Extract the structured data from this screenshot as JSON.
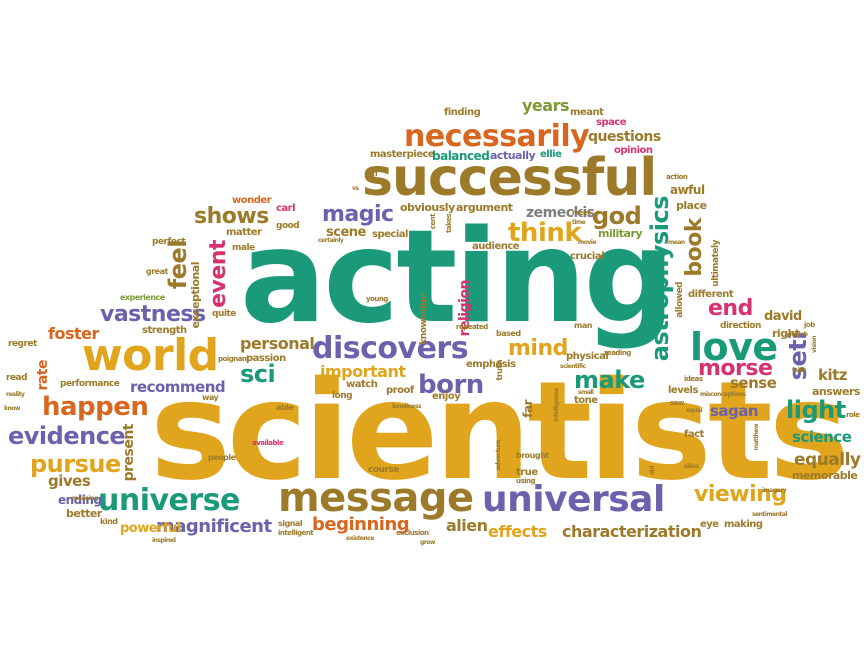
{
  "palette": {
    "green": "#1a9a78",
    "gold": "#e0a51c",
    "orange": "#d9661e",
    "brown": "#9c7a2a",
    "purple": "#6b62ad",
    "pink": "#d6336e",
    "olive": "#7a9a34",
    "teal": "#2a8f8f",
    "gray": "#7d7d7d"
  },
  "words": {
    "acting": "acting",
    "scientists": "scientists",
    "successful": "successful",
    "necessarily": "necessarily",
    "world": "world",
    "message": "message",
    "universe": "universe",
    "universal": "universal",
    "discovers": "discovers",
    "love": "love",
    "think": "think",
    "astrophysics": "astrophysics",
    "evidence": "evidence",
    "happen": "happen",
    "pursue": "pursue",
    "vastness": "vastness",
    "magic": "magic",
    "shows": "shows",
    "god": "god",
    "feel": "feel",
    "event": "event",
    "book": "book",
    "born": "born",
    "make": "make",
    "morse": "morse",
    "mind": "mind",
    "seti": "seti",
    "light": "light",
    "sci": "sci",
    "viewing": "viewing",
    "end": "end",
    "questions": "questions",
    "years": "years",
    "zemeckis": "zemeckis",
    "magnificent": "magnificent",
    "beginning": "beginning",
    "characterization": "characterization",
    "effects": "effects",
    "alien": "alien",
    "science": "science",
    "equally": "equally",
    "kitz": "kitz",
    "sagan": "sagan",
    "sense": "sense",
    "important": "important",
    "personal": "personal",
    "recommend": "recommend",
    "foster": "foster",
    "rate": "rate",
    "gives": "gives",
    "present": "present",
    "powerful": "powerful",
    "ending": "ending",
    "better": "better",
    "david": "david",
    "right": "right",
    "answers": "answers",
    "memorable": "memorable",
    "religion": "religion",
    "masterpiece": "masterpiece",
    "balanced": "balanced",
    "actually": "actually",
    "ellie": "ellie",
    "finding": "finding",
    "meant": "meant",
    "space": "space",
    "opinion": "opinion",
    "obviously": "obviously",
    "argument": "argument",
    "scene": "scene",
    "special": "special",
    "military": "military",
    "crucial": "crucial",
    "audience": "audience",
    "carl": "carl",
    "wonder": "wonder",
    "good": "good",
    "matter": "matter",
    "perfect": "perfect",
    "exceptional": "exceptional",
    "male": "male",
    "great": "great",
    "experience": "experience",
    "quite": "quite",
    "strength": "strength",
    "regret": "regret",
    "passion": "passion",
    "poignant": "poignant",
    "performance": "performance",
    "way": "way",
    "read": "read",
    "watch": "watch",
    "proof": "proof",
    "enjoy": "enjoy",
    "emphasis": "emphasis",
    "physical": "physical",
    "tone": "tone",
    "fact": "fact",
    "levels": "levels",
    "direction": "direction",
    "job": "job",
    "vision": "vision",
    "role": "role",
    "allowed": "allowed",
    "different": "different",
    "ultimately": "ultimately",
    "action": "action",
    "awful": "awful",
    "place": "place",
    "man": "man",
    "based": "based",
    "repeated": "repeated",
    "truth": "truth",
    "far": "far",
    "true": "true",
    "using": "using",
    "brought": "brought",
    "course": "course",
    "able": "able",
    "long": "long",
    "people": "people",
    "available": "available",
    "signal": "signal",
    "intelligent": "intelligent",
    "exclusion": "exclusion",
    "existence": "existence",
    "grow": "grow",
    "eye": "eye",
    "making": "making",
    "sentimental": "sentimental",
    "kind": "kind",
    "inspired": "inspired",
    "knowledge": "knowledge",
    "young": "young",
    "certainly": "certainly",
    "reality": "reality",
    "know": "know",
    "meaning": "meaning",
    "cent": "cent",
    "takes": "takes",
    "meet": "meet",
    "time": "time",
    "saw": "saw",
    "movie": "movie",
    "mean": "mean",
    "ideas": "ideas",
    "equal": "equal",
    "reading": "reading",
    "scientific": "scientific",
    "loneliness": "loneliness",
    "intelligence": "intelligence",
    "misconception": "misconceptions",
    "matthew": "matthew",
    "imagery": "imagery",
    "search": "search",
    "faith": "faith",
    "vs": "vs",
    "fi": "fi",
    "adventure": "adventure",
    "did": "did",
    "skies": "skies",
    "small": "small"
  }
}
